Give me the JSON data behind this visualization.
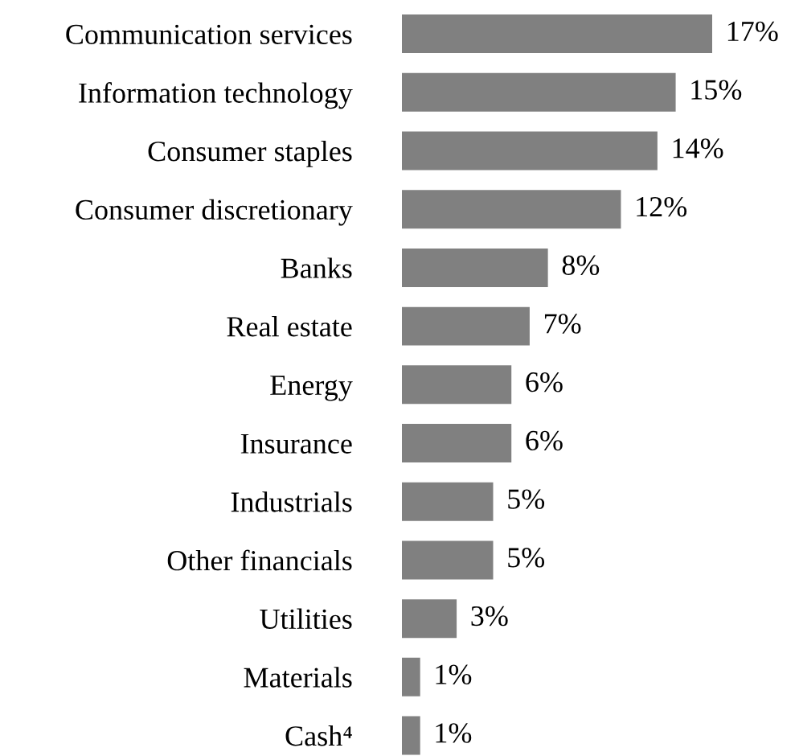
{
  "chart_data": {
    "type": "bar",
    "orientation": "horizontal",
    "categories": [
      "Communication services",
      "Information technology",
      "Consumer staples",
      "Consumer discretionary",
      "Banks",
      "Real estate",
      "Energy",
      "Insurance",
      "Industrials",
      "Other financials",
      "Utilities",
      "Materials",
      "Cash⁴"
    ],
    "values": [
      17,
      15,
      14,
      12,
      8,
      7,
      6,
      6,
      5,
      5,
      3,
      1,
      1
    ],
    "value_labels": [
      "17%",
      "15%",
      "14%",
      "12%",
      "8%",
      "7%",
      "6%",
      "6%",
      "5%",
      "5%",
      "3%",
      "1%",
      "1%"
    ],
    "color": "#808080",
    "grid": false,
    "legend": false
  }
}
